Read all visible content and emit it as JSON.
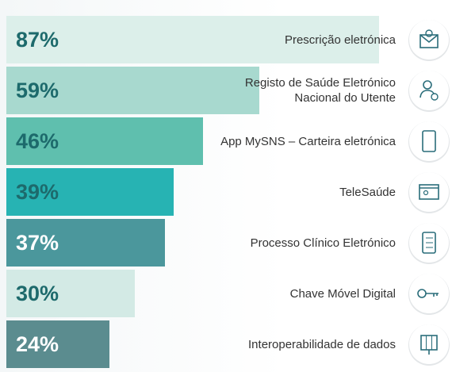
{
  "chart_data": {
    "type": "bar",
    "orientation": "horizontal",
    "categories": [
      "Prescrição eletrónica",
      "Registo de Saúde Eletrónico\nNacional do Utente",
      "App MySNS –  Carteira eletrónica",
      "TeleSaúde",
      "Processo Clínico Eletrónico",
      "Chave Móvel Digital",
      "Interoperabilidade de dados"
    ],
    "values": [
      87,
      59,
      46,
      39,
      37,
      30,
      24
    ],
    "value_labels": [
      "87%",
      "59%",
      "46%",
      "39%",
      "37%",
      "30%",
      "24%"
    ],
    "colors": [
      "#dcefea",
      "#a8d9cf",
      "#5fbfae",
      "#27b3b3",
      "#4b979c",
      "#d3eae5",
      "#5b8c8f"
    ],
    "value_label_colors": [
      "#1d6a6c",
      "#1d6a6c",
      "#1d6a6c",
      "#1d6a6c",
      "#ffffff",
      "#1d6a6c",
      "#ffffff"
    ]
  }
}
